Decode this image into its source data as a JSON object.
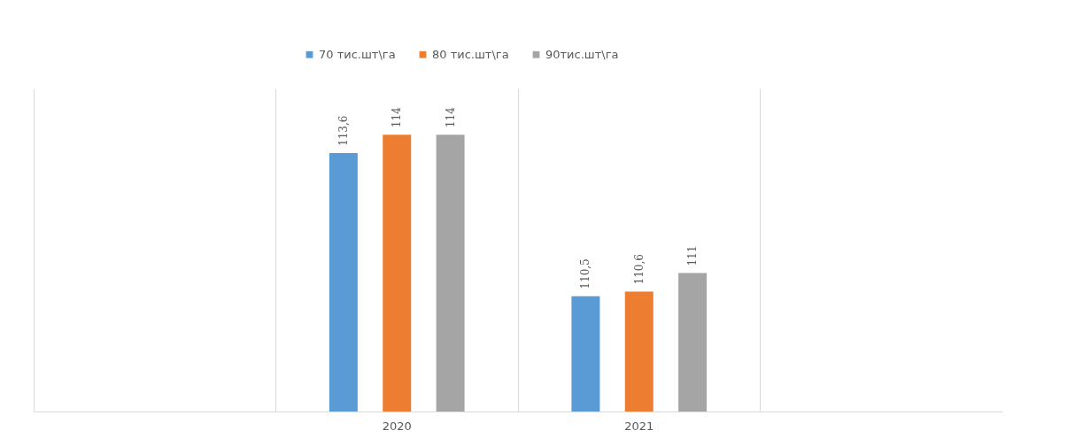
{
  "chart_data": {
    "type": "bar",
    "categories": [
      null,
      "2020",
      "2021",
      null
    ],
    "series": [
      {
        "name": "70 тис.шт\\га",
        "color": "#5b9bd5",
        "values": [
          null,
          113.6,
          110.5,
          null
        ],
        "value_labels": [
          null,
          "113,6",
          "110,5",
          null
        ]
      },
      {
        "name": "80 тис.шт\\га",
        "color": "#ed7d31",
        "values": [
          null,
          114,
          110.6,
          null
        ],
        "value_labels": [
          null,
          "114",
          "110,6",
          null
        ]
      },
      {
        "name": "90тис.шт\\га",
        "color": "#a5a5a5",
        "values": [
          null,
          114,
          111,
          null
        ],
        "value_labels": [
          null,
          "114",
          "111",
          null
        ]
      }
    ],
    "ylim": [
      108,
      115
    ],
    "tick_labels": "x",
    "grid": "x",
    "legend": "top"
  }
}
